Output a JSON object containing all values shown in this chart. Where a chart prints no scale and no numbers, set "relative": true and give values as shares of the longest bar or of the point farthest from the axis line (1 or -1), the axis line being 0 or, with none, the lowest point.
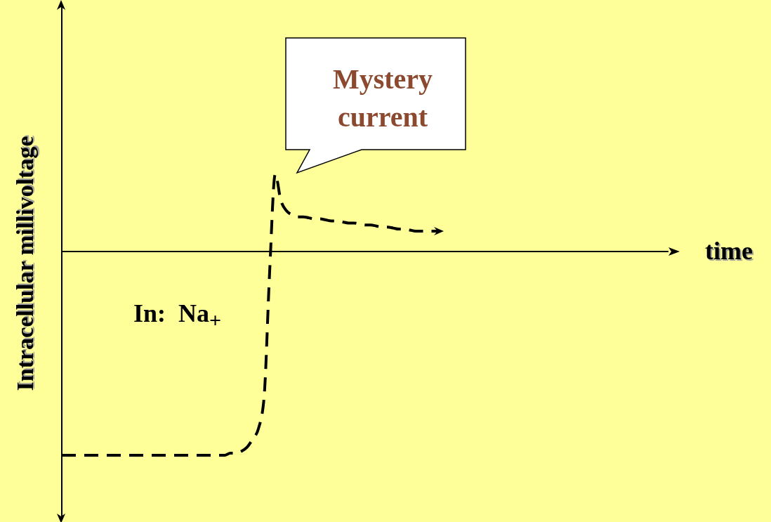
{
  "chart_data": {
    "type": "line",
    "relative": true,
    "xlabel": "time",
    "ylabel": "Intracellular millivoltage",
    "annotations": [
      "Mystery current",
      "In:  Na$_{+}$"
    ],
    "marker": "none",
    "line_style": "dashed",
    "categories": [
      null,
      null,
      null,
      null,
      null,
      null,
      null,
      null,
      null,
      null,
      null,
      null,
      null,
      null,
      null,
      null,
      null,
      null,
      null,
      null,
      null,
      null,
      null,
      null,
      null,
      null,
      null,
      null,
      null,
      null,
      null,
      null,
      null,
      null,
      null,
      null,
      null,
      null,
      null,
      null,
      null,
      null,
      null,
      null,
      null,
      null,
      null,
      null,
      null,
      null,
      null,
      null,
      null,
      null,
      null,
      null,
      null,
      null,
      null,
      null,
      null,
      null,
      null,
      null,
      null,
      null,
      null,
      null,
      null,
      null,
      null,
      null,
      null,
      null,
      null,
      null,
      null,
      null,
      null,
      null,
      null,
      null,
      null,
      null,
      null,
      null,
      null,
      null,
      null,
      null,
      null,
      null,
      null,
      null,
      null,
      null,
      null,
      null,
      null,
      null,
      null,
      null,
      null,
      null,
      null,
      null,
      null,
      null,
      null
    ],
    "series": [
      {
        "color": "#000000",
        "values": [
          -1,
          -1,
          -1,
          -1,
          -1,
          -1,
          -1,
          -1,
          -1,
          -1,
          -1,
          -1,
          -1,
          -1,
          -1,
          -1,
          -1,
          -1,
          -1,
          -1,
          -1,
          -1,
          -1,
          -1,
          -1,
          -1,
          -1,
          -1,
          -1,
          -1,
          -0.99,
          -0.99,
          -0.98,
          -0.96,
          -0.92,
          -0.87,
          -0.72,
          -0.1,
          0.38,
          0.25,
          0.2,
          0.18,
          0.17,
          0.17,
          0.165,
          0.16,
          0.16,
          0.155,
          0.15,
          0.15,
          0.145,
          0.14,
          0.14,
          0.135,
          0.13,
          0.13,
          0.125,
          0.12,
          0.12,
          0.115,
          0.11,
          0.11,
          0.105,
          0.1,
          0.1,
          0.1,
          0.1,
          0.1,
          null,
          null,
          null,
          null,
          null,
          null,
          null,
          null,
          null,
          null,
          null,
          null,
          null,
          null,
          null,
          null,
          null,
          null,
          null,
          null,
          null,
          null,
          null,
          null,
          null,
          null,
          null,
          null,
          null,
          null,
          null,
          null,
          null,
          null,
          null,
          null,
          null,
          null,
          null,
          null,
          null
        ]
      }
    ]
  }
}
